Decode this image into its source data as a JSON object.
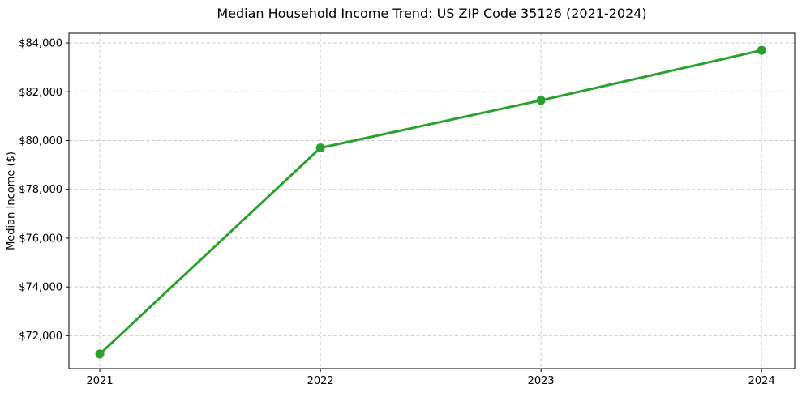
{
  "chart_data": {
    "type": "line",
    "title": "Median Household Income Trend: US ZIP Code 35126 (2021-2024)",
    "xlabel": "",
    "ylabel": "Median Income ($)",
    "x": [
      2021,
      2022,
      2023,
      2024
    ],
    "x_labels": [
      "2021",
      "2022",
      "2023",
      "2024"
    ],
    "values": [
      71250,
      79700,
      81650,
      83700
    ],
    "yticks": [
      72000,
      74000,
      76000,
      78000,
      80000,
      82000,
      84000
    ],
    "ytick_labels": [
      "$72,000",
      "$74,000",
      "$76,000",
      "$78,000",
      "$80,000",
      "$82,000",
      "$84,000"
    ],
    "xlim": [
      2020.86,
      2024.15
    ],
    "ylim": [
      70650,
      84400
    ],
    "grid": true,
    "grid_style": "dashed",
    "legend": "none",
    "line_color": "#2ca02c",
    "marker_color": "#2ca02c",
    "grid_color": "#cccccc",
    "spine_color": "#000000",
    "text_color": "#000000",
    "background_color": "#ffffff"
  }
}
